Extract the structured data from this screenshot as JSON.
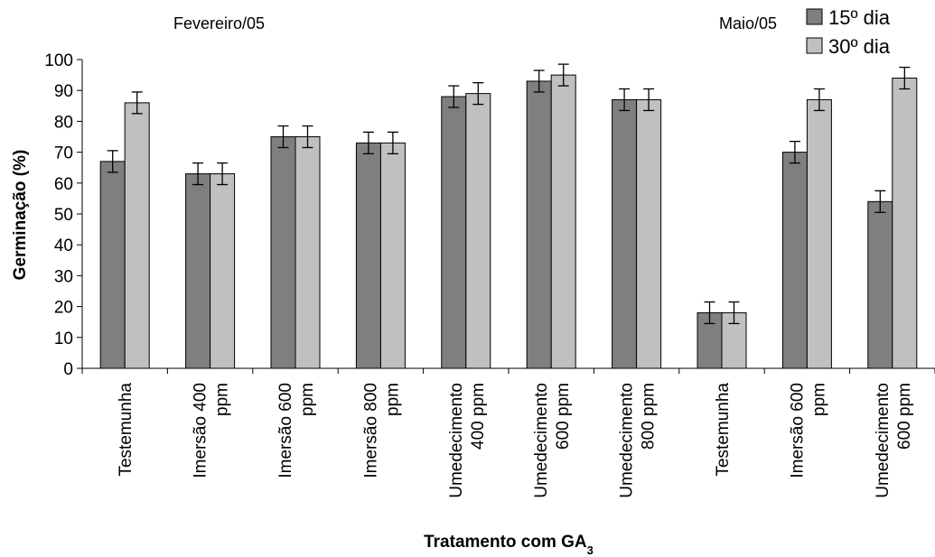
{
  "chart_data": {
    "type": "bar",
    "title": "",
    "xlabel": "Tratamento com GA",
    "xlabel_subscript": "3",
    "ylabel": "Germinação (%)",
    "ylim": [
      0,
      100
    ],
    "yticks": [
      0,
      10,
      20,
      30,
      40,
      50,
      60,
      70,
      80,
      90,
      100
    ],
    "grid": false,
    "legend_position": "top-right",
    "categories": [
      [
        "Testemunha"
      ],
      [
        "Imersão  400",
        "ppm"
      ],
      [
        "Imersão 600",
        "ppm"
      ],
      [
        "Imersão 800",
        "ppm"
      ],
      [
        "Umedecimento",
        "400 ppm"
      ],
      [
        "Umedecimento",
        "600 ppm"
      ],
      [
        "Umedecimento",
        "800 ppm"
      ],
      [
        "Testemunha"
      ],
      [
        "Imersão 600",
        "ppm"
      ],
      [
        "Umedecimento",
        "600 ppm"
      ]
    ],
    "annotations": [
      {
        "text": "Fevereiro/05"
      },
      {
        "text": "Maio/05"
      }
    ],
    "series": [
      {
        "name": "15º dia",
        "color": "#7f7f7f",
        "values": [
          67,
          63,
          75,
          73,
          88,
          93,
          87,
          18,
          70,
          54
        ],
        "errors": [
          3.5,
          3.5,
          3.5,
          3.5,
          3.5,
          3.5,
          3.5,
          3.5,
          3.5,
          3.5
        ]
      },
      {
        "name": "30º dia",
        "color": "#c0c0c0",
        "values": [
          86,
          63,
          75,
          73,
          89,
          95,
          87,
          18,
          87,
          94
        ],
        "errors": [
          3.5,
          3.5,
          3.5,
          3.5,
          3.5,
          3.5,
          3.5,
          3.5,
          3.5,
          3.5
        ]
      }
    ]
  }
}
